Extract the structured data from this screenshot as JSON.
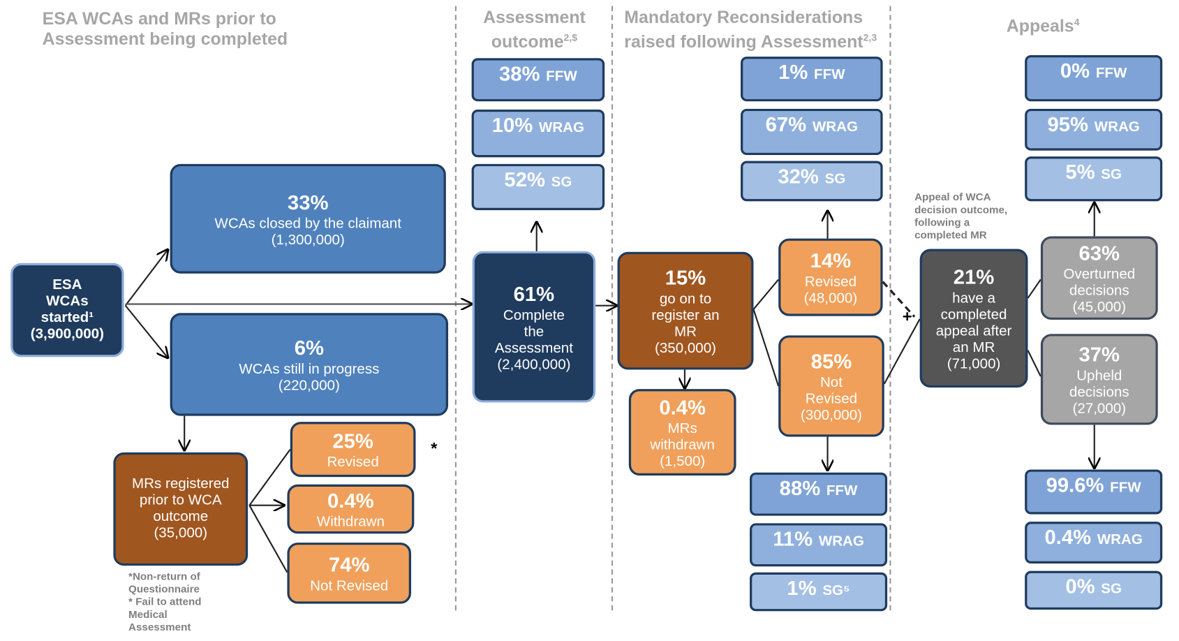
{
  "headers": [
    {
      "title": "ESA WCAs and MRs prior to Assessment being completed"
    },
    {
      "title": "Assessment outcome",
      "sup": "2,$"
    },
    {
      "title": "Mandatory Reconsiderations raised following Assessment",
      "sup": "2,3"
    },
    {
      "title": "Appeals",
      "sup": "4"
    }
  ],
  "nodes": [
    {
      "lines": [
        "ESA",
        "WCAs",
        "started¹",
        "(3,900,000)"
      ]
    },
    {
      "pct": "33%",
      "lines": [
        "WCAs closed by the claimant",
        "(1,300,000)"
      ]
    },
    {
      "pct": "6%",
      "lines": [
        "WCAs still in progress",
        "(220,000)"
      ]
    },
    {
      "lines": [
        "MRs registered",
        "prior to WCA",
        "outcome",
        "(35,000)"
      ]
    },
    {
      "pct": "25%",
      "lines": [
        "Revised"
      ]
    },
    {
      "pct": "0.4%",
      "lines": [
        "Withdrawn"
      ]
    },
    {
      "pct": "74%",
      "lines": [
        "Not Revised"
      ]
    },
    {
      "pct": "61%",
      "lines": [
        "Complete",
        "the",
        "Assessment",
        "(2,400,000)"
      ]
    },
    {
      "pct": "15%",
      "lines": [
        "go on to",
        "register an",
        "MR",
        "(350,000)"
      ]
    },
    {
      "pct": "0.4%",
      "lines": [
        "MRs",
        "withdrawn",
        "(1,500)"
      ]
    },
    {
      "pct": "14%",
      "lines": [
        "Revised",
        "(48,000)"
      ]
    },
    {
      "pct": "85%",
      "lines": [
        "Not",
        "Revised",
        "(300,000)"
      ]
    },
    {
      "pct": "21%",
      "lines": [
        "have a",
        "completed",
        "appeal after",
        "an MR",
        "(71,000)"
      ]
    },
    {
      "pct": "63%",
      "lines": [
        "Overturned",
        "decisions",
        "(45,000)"
      ]
    },
    {
      "pct": "37%",
      "lines": [
        "Upheld",
        "decisions",
        "(27,000)"
      ]
    }
  ],
  "outcomes": [
    {
      "pct": "38%",
      "label": "FFW"
    },
    {
      "pct": "10%",
      "label": "WRAG"
    },
    {
      "pct": "52%",
      "label": "SG"
    },
    {
      "pct": "1%",
      "label": "FFW"
    },
    {
      "pct": "67%",
      "label": "WRAG"
    },
    {
      "pct": "32%",
      "label": "SG"
    },
    {
      "pct": "88%",
      "label": "FFW"
    },
    {
      "pct": "11%",
      "label": "WRAG"
    },
    {
      "pct": "1%",
      "label": "SG⁵"
    },
    {
      "pct": "0%",
      "label": "FFW"
    },
    {
      "pct": "95%",
      "label": "WRAG"
    },
    {
      "pct": "5%",
      "label": "SG"
    },
    {
      "pct": "99.6%",
      "label": "FFW"
    },
    {
      "pct": "0.4%",
      "label": "WRAG"
    },
    {
      "pct": "0%",
      "label": "SG"
    }
  ],
  "notes": {
    "asterisk": "*",
    "footnote": [
      "*Non-return of",
      "Questionnaire",
      "* Fail to attend",
      "Medical",
      "Assessment"
    ],
    "appeal_label": [
      "Appeal of WCA",
      "decision outcome,",
      "following a",
      "completed MR"
    ],
    "plus": "+"
  }
}
